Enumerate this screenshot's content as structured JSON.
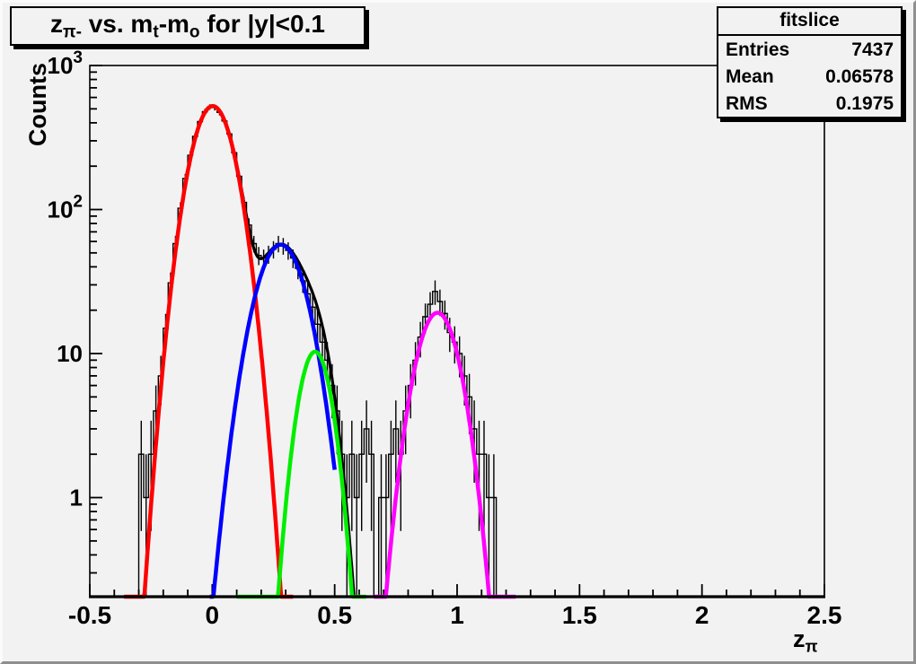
{
  "canvas": {
    "bg": "#f2f2f2",
    "frame_line_color": "#000000"
  },
  "title": {
    "plain": "z_pi- vs. m_t-m_o for |y|<0.1",
    "segments": [
      {
        "t": "z"
      },
      {
        "t": "π-",
        "sub": true
      },
      {
        "t": " vs. m"
      },
      {
        "t": "t",
        "sub": true
      },
      {
        "t": "-m"
      },
      {
        "t": "o",
        "sub": true
      },
      {
        "t": " for |y|<0.1"
      }
    ]
  },
  "stats": {
    "title": "fitslice",
    "rows": [
      {
        "label": "Entries",
        "value": "7437"
      },
      {
        "label": "Mean",
        "value": "0.06578"
      },
      {
        "label": "RMS",
        "value": "0.1975"
      }
    ]
  },
  "axes": {
    "x": {
      "title_segments": [
        {
          "t": "z"
        },
        {
          "t": "π",
          "sub": true
        }
      ],
      "min": -0.5,
      "max": 2.5,
      "ticks": [
        {
          "v": -0.5,
          "label": "-0.5"
        },
        {
          "v": 0,
          "label": "0"
        },
        {
          "v": 0.5,
          "label": "0.5"
        },
        {
          "v": 1,
          "label": "1"
        },
        {
          "v": 1.5,
          "label": "1.5"
        },
        {
          "v": 2,
          "label": "2"
        },
        {
          "v": 2.5,
          "label": "2.5"
        }
      ],
      "minor_step": 0.1
    },
    "y": {
      "title": "Counts",
      "scale": "log",
      "min": 0.205,
      "max": 1000,
      "ticks": [
        {
          "v": 1,
          "label": "1"
        },
        {
          "v": 10,
          "label": "10"
        },
        {
          "v": 100,
          "label": "10",
          "exp": "2"
        },
        {
          "v": 1000,
          "label": "10",
          "exp": "3"
        }
      ]
    }
  },
  "chart_data": {
    "type": "histogram-with-gaussian-fits",
    "xlabel": "z_pi",
    "ylabel": "Counts",
    "xlim": [
      -0.5,
      2.5
    ],
    "ylim": [
      0.205,
      1000
    ],
    "yscale": "log",
    "grid": false,
    "histogram": {
      "color": "#000000",
      "bin_width": 0.02,
      "first_bin_center": -0.29,
      "counts": [
        2,
        1,
        2,
        4,
        7,
        15,
        31,
        58,
        102,
        164,
        238,
        322,
        408,
        478,
        515,
        510,
        472,
        412,
        335,
        248,
        170,
        112,
        78,
        58,
        48,
        46,
        49,
        53,
        58,
        56,
        52,
        46,
        39,
        32,
        26,
        21,
        16,
        12,
        9,
        6,
        4,
        2,
        1,
        2,
        1,
        2,
        3,
        2,
        0,
        1,
        1,
        2,
        3,
        2,
        4,
        6,
        9,
        13,
        18,
        22,
        27,
        23,
        19,
        14,
        12,
        10,
        7,
        5,
        3,
        2,
        2,
        1,
        1
      ],
      "errors": "sqrt(N)"
    },
    "fits": [
      {
        "name": "fit-gauss-red",
        "color": "#ff0000",
        "amplitude": 523,
        "mean": 0.002,
        "sigma": 0.0705,
        "range": [
          -0.36,
          0.33
        ],
        "width": 4.5
      },
      {
        "name": "fit-gauss-blue",
        "color": "#0000ff",
        "amplitude": 57,
        "mean": 0.28,
        "sigma": 0.082,
        "range": [
          -0.01,
          0.5
        ],
        "width": 4.5
      },
      {
        "name": "fit-gauss-green",
        "color": "#00ee00",
        "amplitude": 10.3,
        "mean": 0.42,
        "sigma": 0.054,
        "range": [
          0.1,
          0.63
        ],
        "width": 4.5
      },
      {
        "name": "fit-gauss-magenta",
        "color": "#ff00ff",
        "amplitude": 19.2,
        "mean": 0.92,
        "sigma": 0.07,
        "range": [
          0.66,
          1.24
        ],
        "width": 4.5
      }
    ],
    "total_fit": {
      "name": "fit-total-black",
      "color": "#000000",
      "components": [
        0,
        1,
        2
      ],
      "range": [
        -0.36,
        0.62
      ],
      "width": 3.2
    }
  }
}
